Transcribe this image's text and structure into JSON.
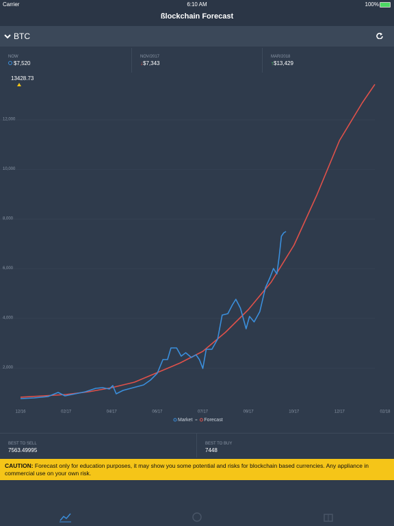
{
  "status_bar": {
    "carrier": "Carrier",
    "time": "6:10 AM",
    "battery": "100%"
  },
  "header": {
    "title": "ßlockchain Forecast"
  },
  "selector": {
    "coin": "BTC"
  },
  "stats": [
    {
      "label": "NOW",
      "value": "$7,520"
    },
    {
      "label": "NOV/2017",
      "value": "$7,343"
    },
    {
      "label": "MAR/2018",
      "value": "$13,429"
    }
  ],
  "chart_data": {
    "type": "line",
    "annotation": "13428.73",
    "xlim": [
      0,
      16
    ],
    "xticks": [
      {
        "value": 0,
        "label": "12/16"
      },
      {
        "value": 2,
        "label": "02/17"
      },
      {
        "value": 4,
        "label": "04/17"
      },
      {
        "value": 6,
        "label": "06/17"
      },
      {
        "value": 8,
        "label": "07/17"
      },
      {
        "value": 10,
        "label": "09/17"
      },
      {
        "value": 12,
        "label": "10/17"
      },
      {
        "value": 14,
        "label": "12/17"
      },
      {
        "value": 16,
        "label": "02/18"
      }
    ],
    "ylim": [
      0,
      13600
    ],
    "yticks": [
      {
        "value": 2000,
        "label": "2,000"
      },
      {
        "value": 4000,
        "label": "4,000"
      },
      {
        "value": 6000,
        "label": "6,000"
      },
      {
        "value": 8000,
        "label": "8,000"
      },
      {
        "value": 10000,
        "label": "10,000"
      },
      {
        "value": 12000,
        "label": "12,000"
      }
    ],
    "grid": true,
    "series": [
      {
        "name": "Market",
        "color": "#3b8fdc",
        "x": [
          0,
          0.6,
          1.2,
          1.65,
          1.95,
          2.4,
          2.85,
          3.3,
          3.6,
          3.9,
          4.05,
          4.2,
          4.5,
          4.95,
          5.4,
          5.7,
          6.0,
          6.25,
          6.45,
          6.6,
          6.85,
          7.05,
          7.25,
          7.5,
          7.7,
          7.85,
          8.0,
          8.15,
          8.4,
          8.65,
          8.85,
          9.1,
          9.3,
          9.45,
          9.65,
          9.9,
          10.05,
          10.25,
          10.5,
          10.75,
          10.95,
          11.1,
          11.25,
          11.35,
          11.45,
          11.55,
          11.65
        ],
        "values": [
          772,
          800,
          855,
          1020,
          883,
          965,
          1048,
          1186,
          1214,
          1159,
          1297,
          965,
          1103,
          1214,
          1324,
          1517,
          1793,
          2345,
          2345,
          2814,
          2814,
          2483,
          2621,
          2428,
          2538,
          2345,
          1986,
          2759,
          2759,
          3172,
          4138,
          4193,
          4552,
          4772,
          4414,
          3586,
          4083,
          3862,
          4276,
          5241,
          5655,
          6014,
          5793,
          6483,
          7310,
          7448,
          7503
        ]
      },
      {
        "name": "Forecast",
        "color": "#e0514a",
        "x": [
          0,
          1,
          2,
          3,
          4,
          5,
          6,
          7,
          8,
          9,
          10,
          11,
          12,
          13,
          14,
          15,
          15.55
        ],
        "values": [
          830,
          883,
          938,
          1048,
          1214,
          1434,
          1820,
          2207,
          2676,
          3448,
          4359,
          5462,
          6952,
          8966,
          11172,
          12690,
          13428
        ]
      }
    ]
  },
  "summary": [
    {
      "label": "BEST TO SELL",
      "value": "7563.49995"
    },
    {
      "label": "BEST TO BUY",
      "value": "7448"
    }
  ],
  "caution": {
    "lead": "CAUTION:",
    "text": " Forecast only for education purposes, it may show you some potential and risks for blockchain based currencies. Any appliance in commercial use on your own risk."
  }
}
